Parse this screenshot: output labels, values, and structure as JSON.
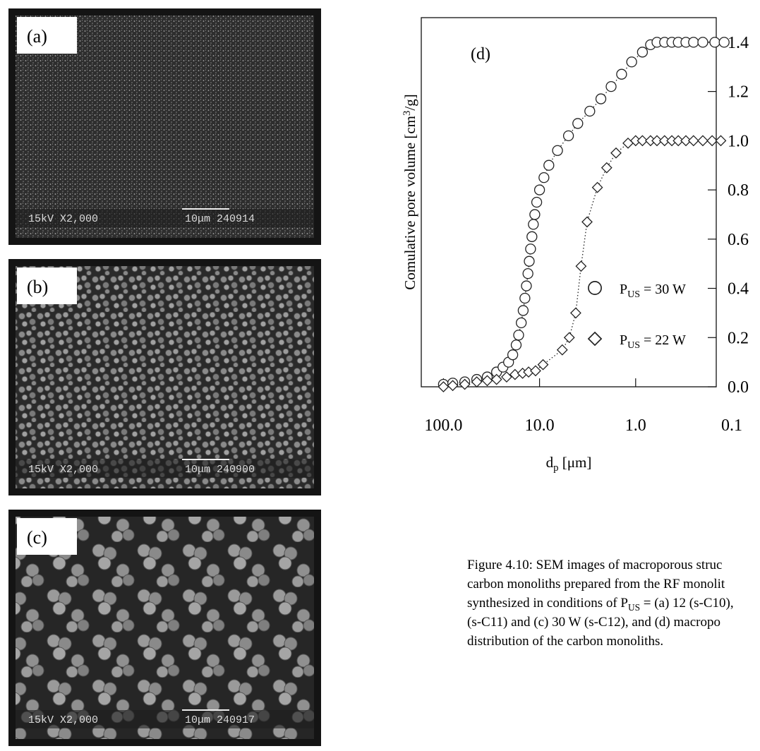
{
  "panels": [
    {
      "label": "(a)",
      "info": "15kV X2,000",
      "scale": "10μm 240914"
    },
    {
      "label": "(b)",
      "info": "15kV X2,000",
      "scale": "10μm 240900"
    },
    {
      "label": "(c)",
      "info": "15kV X2,000",
      "scale": "10μm 240917"
    }
  ],
  "chart_data": {
    "type": "scatter",
    "panel_label": "(d)",
    "x_label": "dp [μm]",
    "y_label": "Comulative pore volume [cm3/g]",
    "xlim": [
      170,
      0.145
    ],
    "log_x": true,
    "xticks": [
      {
        "value": 100,
        "label": "100.0"
      },
      {
        "value": 10,
        "label": "10.0"
      },
      {
        "value": 1,
        "label": "1.0"
      },
      0.1
    ],
    "ylim": [
      0,
      1.5
    ],
    "yticks": [
      {
        "value": 0,
        "label": "0.0"
      },
      {
        "value": 0.2,
        "label": "0.2"
      },
      {
        "value": 0.4,
        "label": "0.4"
      },
      {
        "value": 0.6,
        "label": "0.6"
      },
      {
        "value": 0.8,
        "label": "0.8"
      },
      {
        "value": 1.0,
        "label": "1.0"
      },
      {
        "value": 1.2,
        "label": "1.2"
      },
      {
        "value": 1.4,
        "label": "1.4"
      }
    ],
    "series": [
      {
        "name": "PUS = 30 W",
        "marker": "circle",
        "color": "#222",
        "x": [
          100,
          80,
          60,
          45,
          35,
          28,
          24,
          21,
          19,
          17.5,
          16.5,
          15.5,
          14.8,
          14.2,
          13.7,
          13.2,
          12.8,
          12.4,
          12,
          11.6,
          11.2,
          10.7,
          10,
          9,
          8,
          6.5,
          5,
          4,
          3,
          2.3,
          1.8,
          1.4,
          1.1,
          0.85,
          0.7,
          0.6,
          0.5,
          0.42,
          0.36,
          0.3,
          0.25,
          0.2,
          0.15,
          0.12
        ],
        "values": [
          0.01,
          0.015,
          0.02,
          0.03,
          0.04,
          0.06,
          0.08,
          0.1,
          0.13,
          0.17,
          0.21,
          0.26,
          0.31,
          0.36,
          0.41,
          0.46,
          0.51,
          0.56,
          0.61,
          0.66,
          0.7,
          0.75,
          0.8,
          0.85,
          0.9,
          0.96,
          1.02,
          1.07,
          1.12,
          1.17,
          1.22,
          1.27,
          1.32,
          1.36,
          1.39,
          1.4,
          1.4,
          1.4,
          1.4,
          1.4,
          1.4,
          1.4,
          1.4,
          1.4
        ]
      },
      {
        "name": "PUS = 22 W",
        "marker": "diamond",
        "color": "#222",
        "x": [
          100,
          80,
          60,
          45,
          35,
          28,
          22,
          18,
          15,
          13,
          11,
          9.2,
          5.8,
          4.9,
          4.2,
          3.7,
          3.2,
          2.5,
          2.0,
          1.6,
          1.2,
          1.0,
          0.85,
          0.7,
          0.6,
          0.5,
          0.42,
          0.36,
          0.3,
          0.25,
          0.2,
          0.16,
          0.13
        ],
        "values": [
          0.0,
          0.005,
          0.01,
          0.02,
          0.025,
          0.03,
          0.04,
          0.05,
          0.055,
          0.06,
          0.065,
          0.09,
          0.15,
          0.2,
          0.3,
          0.49,
          0.67,
          0.81,
          0.89,
          0.95,
          0.99,
          1.0,
          1.0,
          1.0,
          1.0,
          1.0,
          1.0,
          1.0,
          1.0,
          1.0,
          1.0,
          1.0,
          1.0
        ]
      }
    ]
  },
  "caption": [
    "Figure 4.10: SEM images of macroporous struc",
    "carbon monoliths prepared from the RF monolit",
    "synthesized in conditions of PUS = (a) 12 (s-C10),",
    "(s-C11) and (c) 30 W (s-C12), and (d)  macropo",
    "distribution of the carbon monoliths."
  ]
}
